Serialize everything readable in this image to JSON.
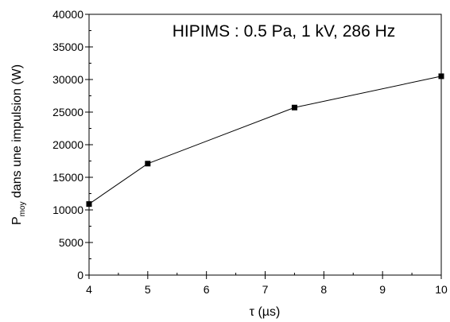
{
  "chart_data": {
    "type": "line",
    "title": "HIPIMS : 0.5 Pa, 1 kV, 286 Hz",
    "xlabel": "τ (µs)",
    "ylabel": {
      "main": "P",
      "subscript": "moy",
      "rest": " dans une impulsion (W)"
    },
    "x": [
      4,
      5,
      7.5,
      10
    ],
    "series": [
      {
        "values": [
          10900,
          17100,
          25700,
          30500
        ]
      }
    ],
    "xlim": [
      4,
      10
    ],
    "ylim": [
      0,
      40000
    ],
    "x_ticks": [
      "4",
      "5",
      "6",
      "7",
      "8",
      "9",
      "10"
    ],
    "y_ticks": [
      "0",
      "5000",
      "10000",
      "15000",
      "20000",
      "25000",
      "30000",
      "35000",
      "40000"
    ],
    "grid": false,
    "marker": "square",
    "color": "#000000"
  }
}
